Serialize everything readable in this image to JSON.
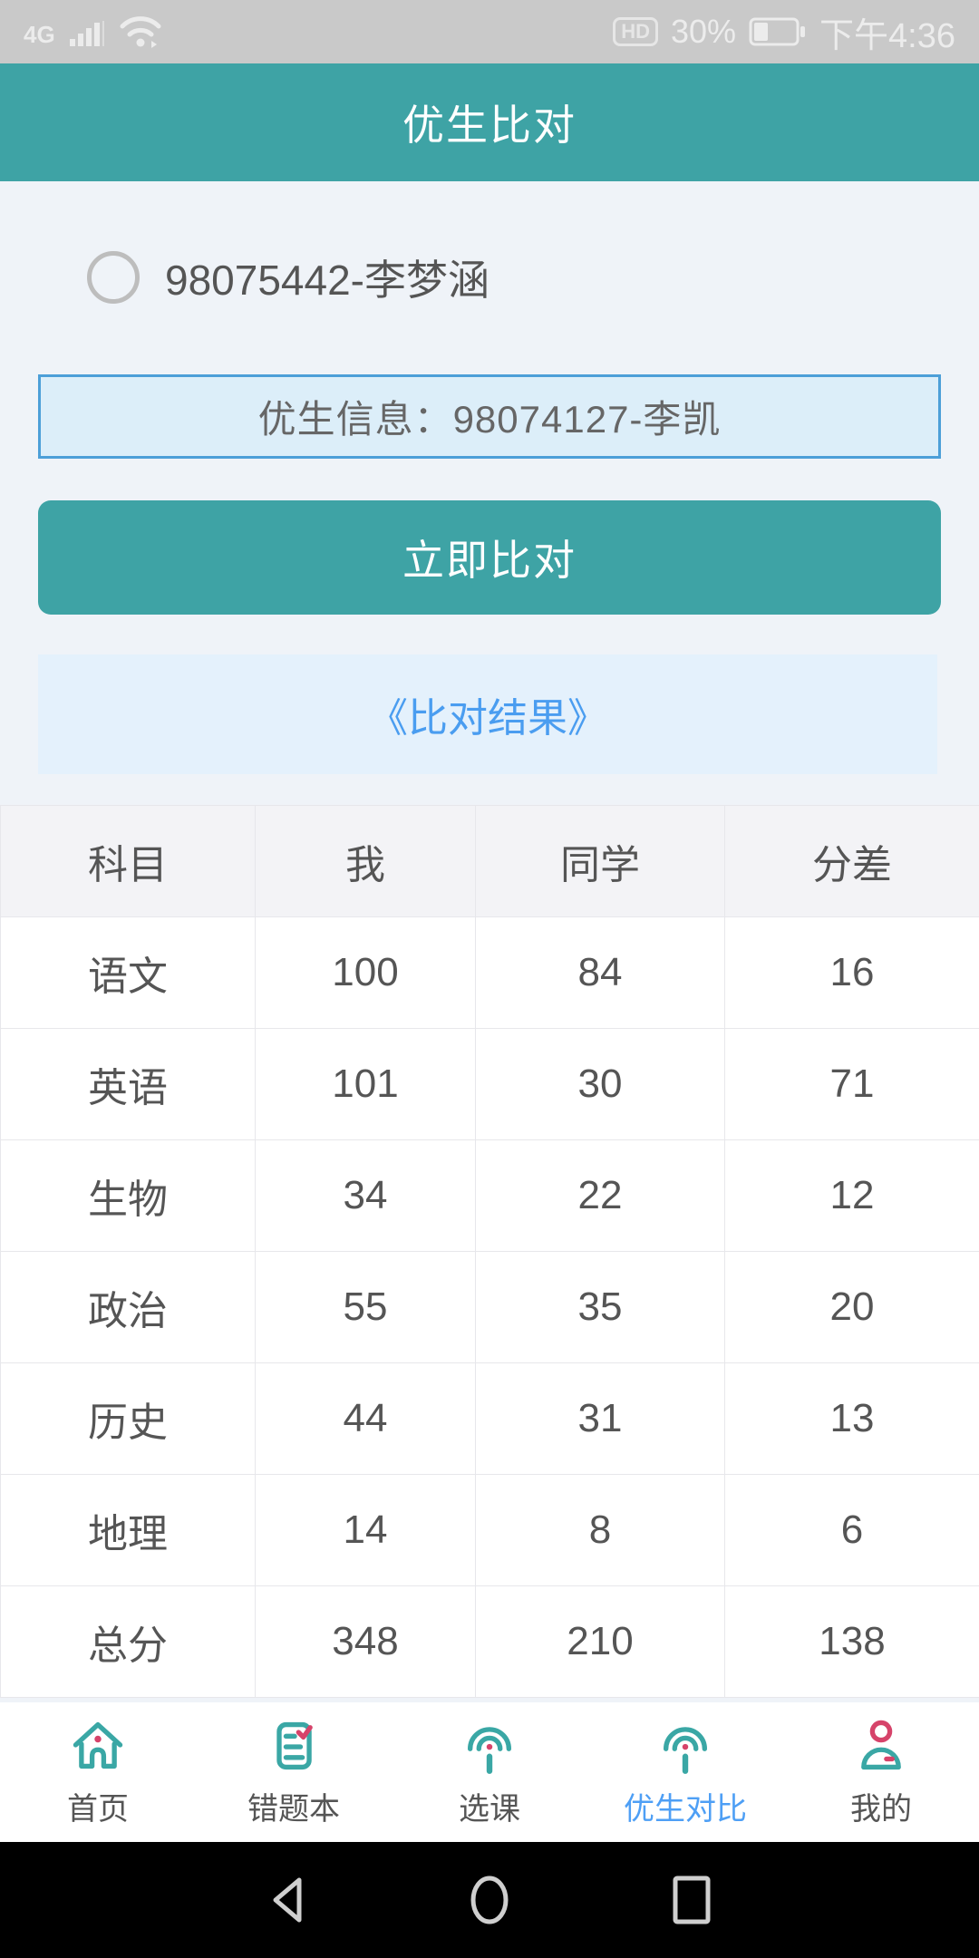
{
  "colors": {
    "teal_accent": "#3EA3A5",
    "blue_link": "#4A9DF0",
    "active_nav_blue": "#4E9FF5",
    "input_bg": "#DCEEF9",
    "input_border": "#4C9FD8",
    "result_band_bg": "#E4F1FC",
    "status_bar_bg": "#C9C9C9",
    "nav_icon_teal": "#3AA7A5",
    "nav_icon_crimson": "#D6436A",
    "table_header_bg": "#F3F3F6"
  },
  "status_bar": {
    "network": "4G",
    "hd_badge": "HD",
    "battery_percent": "30%",
    "time": "下午4:36"
  },
  "header": {
    "title": "优生比对"
  },
  "student_selector": {
    "option_label": "98075442-李梦涵"
  },
  "elite_info": {
    "text": "优生信息：98074127-李凯"
  },
  "actions": {
    "compare_button": "立即比对",
    "result_link": "《比对结果》"
  },
  "score_table": {
    "headers": [
      "科目",
      "我",
      "同学",
      "分差"
    ],
    "rows": [
      [
        "语文",
        "100",
        "84",
        "16"
      ],
      [
        "英语",
        "101",
        "30",
        "71"
      ],
      [
        "生物",
        "34",
        "22",
        "12"
      ],
      [
        "政治",
        "55",
        "35",
        "20"
      ],
      [
        "历史",
        "44",
        "31",
        "13"
      ],
      [
        "地理",
        "14",
        "8",
        "6"
      ],
      [
        "总分",
        "348",
        "210",
        "138"
      ]
    ]
  },
  "bottom_nav": {
    "items": [
      {
        "label": "首页",
        "icon": "home-icon",
        "active": false
      },
      {
        "label": "错题本",
        "icon": "notebook-icon",
        "active": false
      },
      {
        "label": "选课",
        "icon": "broadcast-icon",
        "active": false
      },
      {
        "label": "优生对比",
        "icon": "broadcast-icon",
        "active": true
      },
      {
        "label": "我的",
        "icon": "person-icon",
        "active": false
      }
    ]
  }
}
